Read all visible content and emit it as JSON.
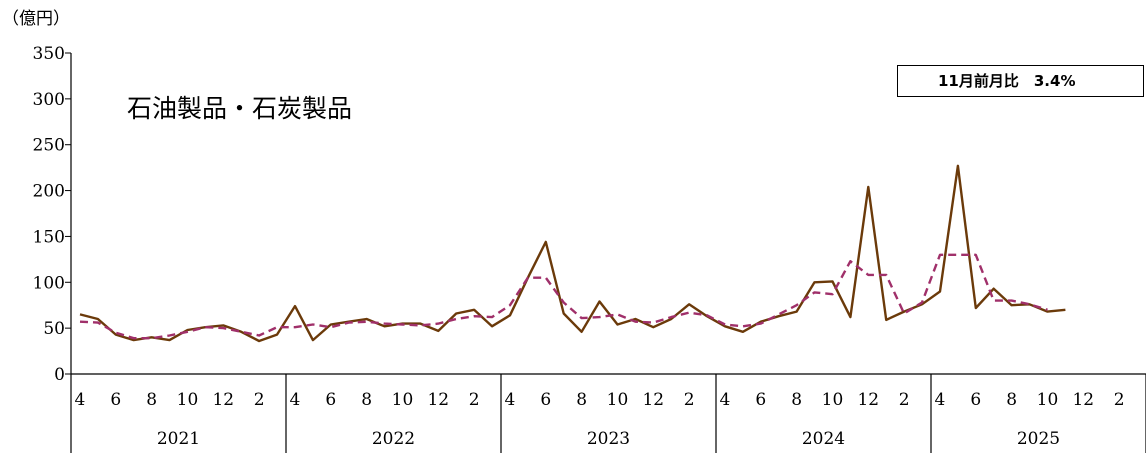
{
  "chart_data": {
    "type": "line",
    "unit_label": "（億円）",
    "inner_title": "石油製品・石炭製品",
    "annotation": "11月前月比　3.4%",
    "ylim": [
      0,
      350
    ],
    "yticks": [
      0,
      50,
      100,
      150,
      200,
      250,
      300,
      350
    ],
    "month_ticks": [
      "4",
      "6",
      "8",
      "10",
      "12",
      "2"
    ],
    "years": [
      "2021",
      "2022",
      "2023",
      "2024",
      "2025"
    ],
    "months_per_year": 12,
    "colors": {
      "series_solid": "#6b3a0a",
      "series_dashed": "#a0306a"
    },
    "series": [
      {
        "style": "solid",
        "values": [
          65,
          60,
          43,
          37,
          40,
          37,
          48,
          51,
          53,
          46,
          36,
          43,
          74,
          37,
          54,
          57,
          60,
          52,
          55,
          55,
          47,
          66,
          70,
          52,
          64,
          105,
          144,
          66,
          46,
          79,
          54,
          60,
          51,
          60,
          76,
          63,
          52,
          46,
          57,
          63,
          68,
          100,
          101,
          62,
          204,
          59,
          68,
          76,
          90,
          227,
          72,
          93,
          75,
          76,
          68,
          70
        ]
      },
      {
        "style": "dashed",
        "values": [
          57,
          56,
          45,
          39,
          39,
          42,
          46,
          51,
          50,
          46,
          42,
          51,
          51,
          54,
          51,
          56,
          57,
          55,
          54,
          53,
          55,
          60,
          63,
          62,
          75,
          105,
          105,
          78,
          61,
          62,
          65,
          57,
          56,
          62,
          67,
          64,
          54,
          52,
          55,
          65,
          75,
          89,
          87,
          123,
          108,
          108,
          66,
          78,
          130,
          130,
          130,
          80,
          80,
          76,
          70,
          null
        ]
      }
    ]
  }
}
